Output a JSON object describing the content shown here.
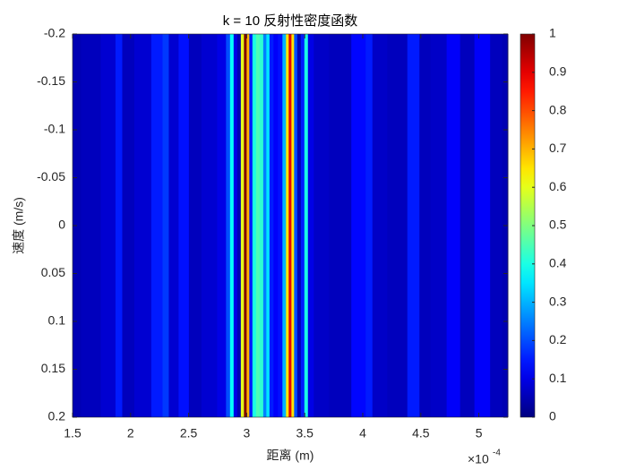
{
  "chart_data": {
    "type": "heatmap",
    "title": "k = 10 反射性密度函数",
    "x_label": "距离 (m)",
    "y_label": "速度 (m/s)",
    "x_multiplier": "×10",
    "x_multiplier_exponent": "-4",
    "x": [
      1.5,
      1.646,
      1.839,
      1.901,
      1.955,
      2.109,
      2.248,
      2.302,
      2.356,
      2.471,
      2.533,
      2.687,
      2.803,
      2.841,
      2.872,
      2.903,
      2.934,
      2.965,
      2.988,
      3.011,
      3.034,
      3.065,
      3.096,
      3.127,
      3.158,
      3.181,
      3.212,
      3.25,
      3.289,
      3.327,
      3.35,
      3.374,
      3.397,
      3.42,
      3.451,
      3.482,
      3.512,
      3.543,
      3.613,
      3.805,
      3.998,
      4.052,
      4.114,
      4.307,
      4.461,
      4.515,
      4.653,
      4.792,
      4.885,
      5.039,
      5.155,
      5.247
    ],
    "values": [
      0.05,
      0.06,
      0.08,
      0.15,
      0.06,
      0.08,
      0.15,
      0.18,
      0.08,
      0.14,
      0.06,
      0.08,
      0.1,
      0.2,
      0.38,
      0.1,
      0.05,
      0.6,
      1.0,
      0.7,
      0.15,
      0.4,
      0.45,
      0.42,
      0.25,
      0.35,
      0.15,
      0.12,
      0.14,
      0.3,
      0.65,
      0.9,
      0.65,
      0.2,
      0.05,
      0.15,
      0.4,
      0.1,
      0.07,
      0.06,
      0.13,
      0.15,
      0.07,
      0.06,
      0.15,
      0.06,
      0.07,
      0.12,
      0.06,
      0.12,
      0.06,
      0.05
    ],
    "xlim": [
      1.5,
      5.25
    ],
    "xticks": [
      1.5,
      2,
      2.5,
      3,
      3.5,
      4,
      4.5,
      5
    ],
    "ylim": [
      -0.2,
      0.2
    ],
    "y_reversed": true,
    "yticks": [
      -0.2,
      -0.15,
      -0.1,
      -0.05,
      0,
      0.05,
      0.1,
      0.15,
      0.2
    ],
    "colormap": "jet",
    "clim": [
      0,
      1
    ],
    "cticks": [
      0,
      0.1,
      0.2,
      0.3,
      0.4,
      0.5,
      0.6,
      0.7,
      0.8,
      0.9,
      1
    ]
  }
}
